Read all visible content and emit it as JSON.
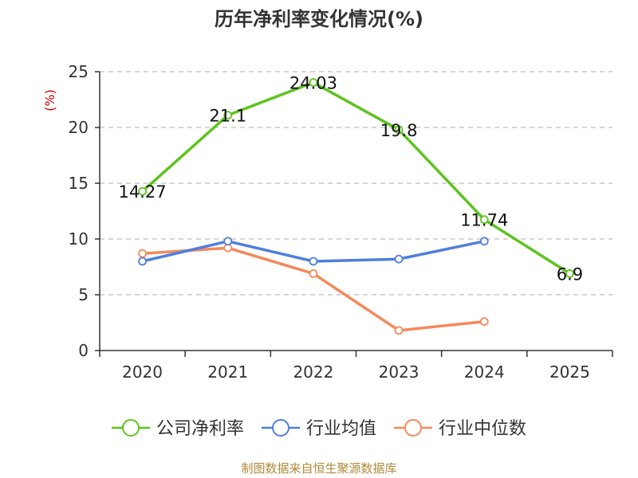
{
  "chart_data": {
    "type": "line",
    "title": "历年净利率变化情况(%)",
    "ylabel": "(%)",
    "xlabel": "",
    "categories": [
      "2020",
      "2021",
      "2022",
      "2023",
      "2024",
      "2025"
    ],
    "ylim": [
      0,
      25
    ],
    "yticks": [
      0,
      5,
      10,
      15,
      20,
      25
    ],
    "grid": true,
    "legend_position": "bottom",
    "series": [
      {
        "name": "公司净利率",
        "color": "#5cc41e",
        "values": [
          14.27,
          21.1,
          24.03,
          19.8,
          11.74,
          6.9
        ],
        "labels": [
          "14.27",
          "21.1",
          "24.03",
          "19.8",
          "11.74",
          "6.9"
        ],
        "show_labels": true
      },
      {
        "name": "行业均值",
        "color": "#4f7fdc",
        "values": [
          8.0,
          9.8,
          8.0,
          8.2,
          9.8,
          null
        ],
        "show_labels": false
      },
      {
        "name": "行业中位数",
        "color": "#f5895a",
        "values": [
          8.7,
          9.2,
          6.9,
          1.8,
          2.6,
          null
        ],
        "show_labels": false
      }
    ]
  },
  "source": "制图数据来自恒生聚源数据库"
}
